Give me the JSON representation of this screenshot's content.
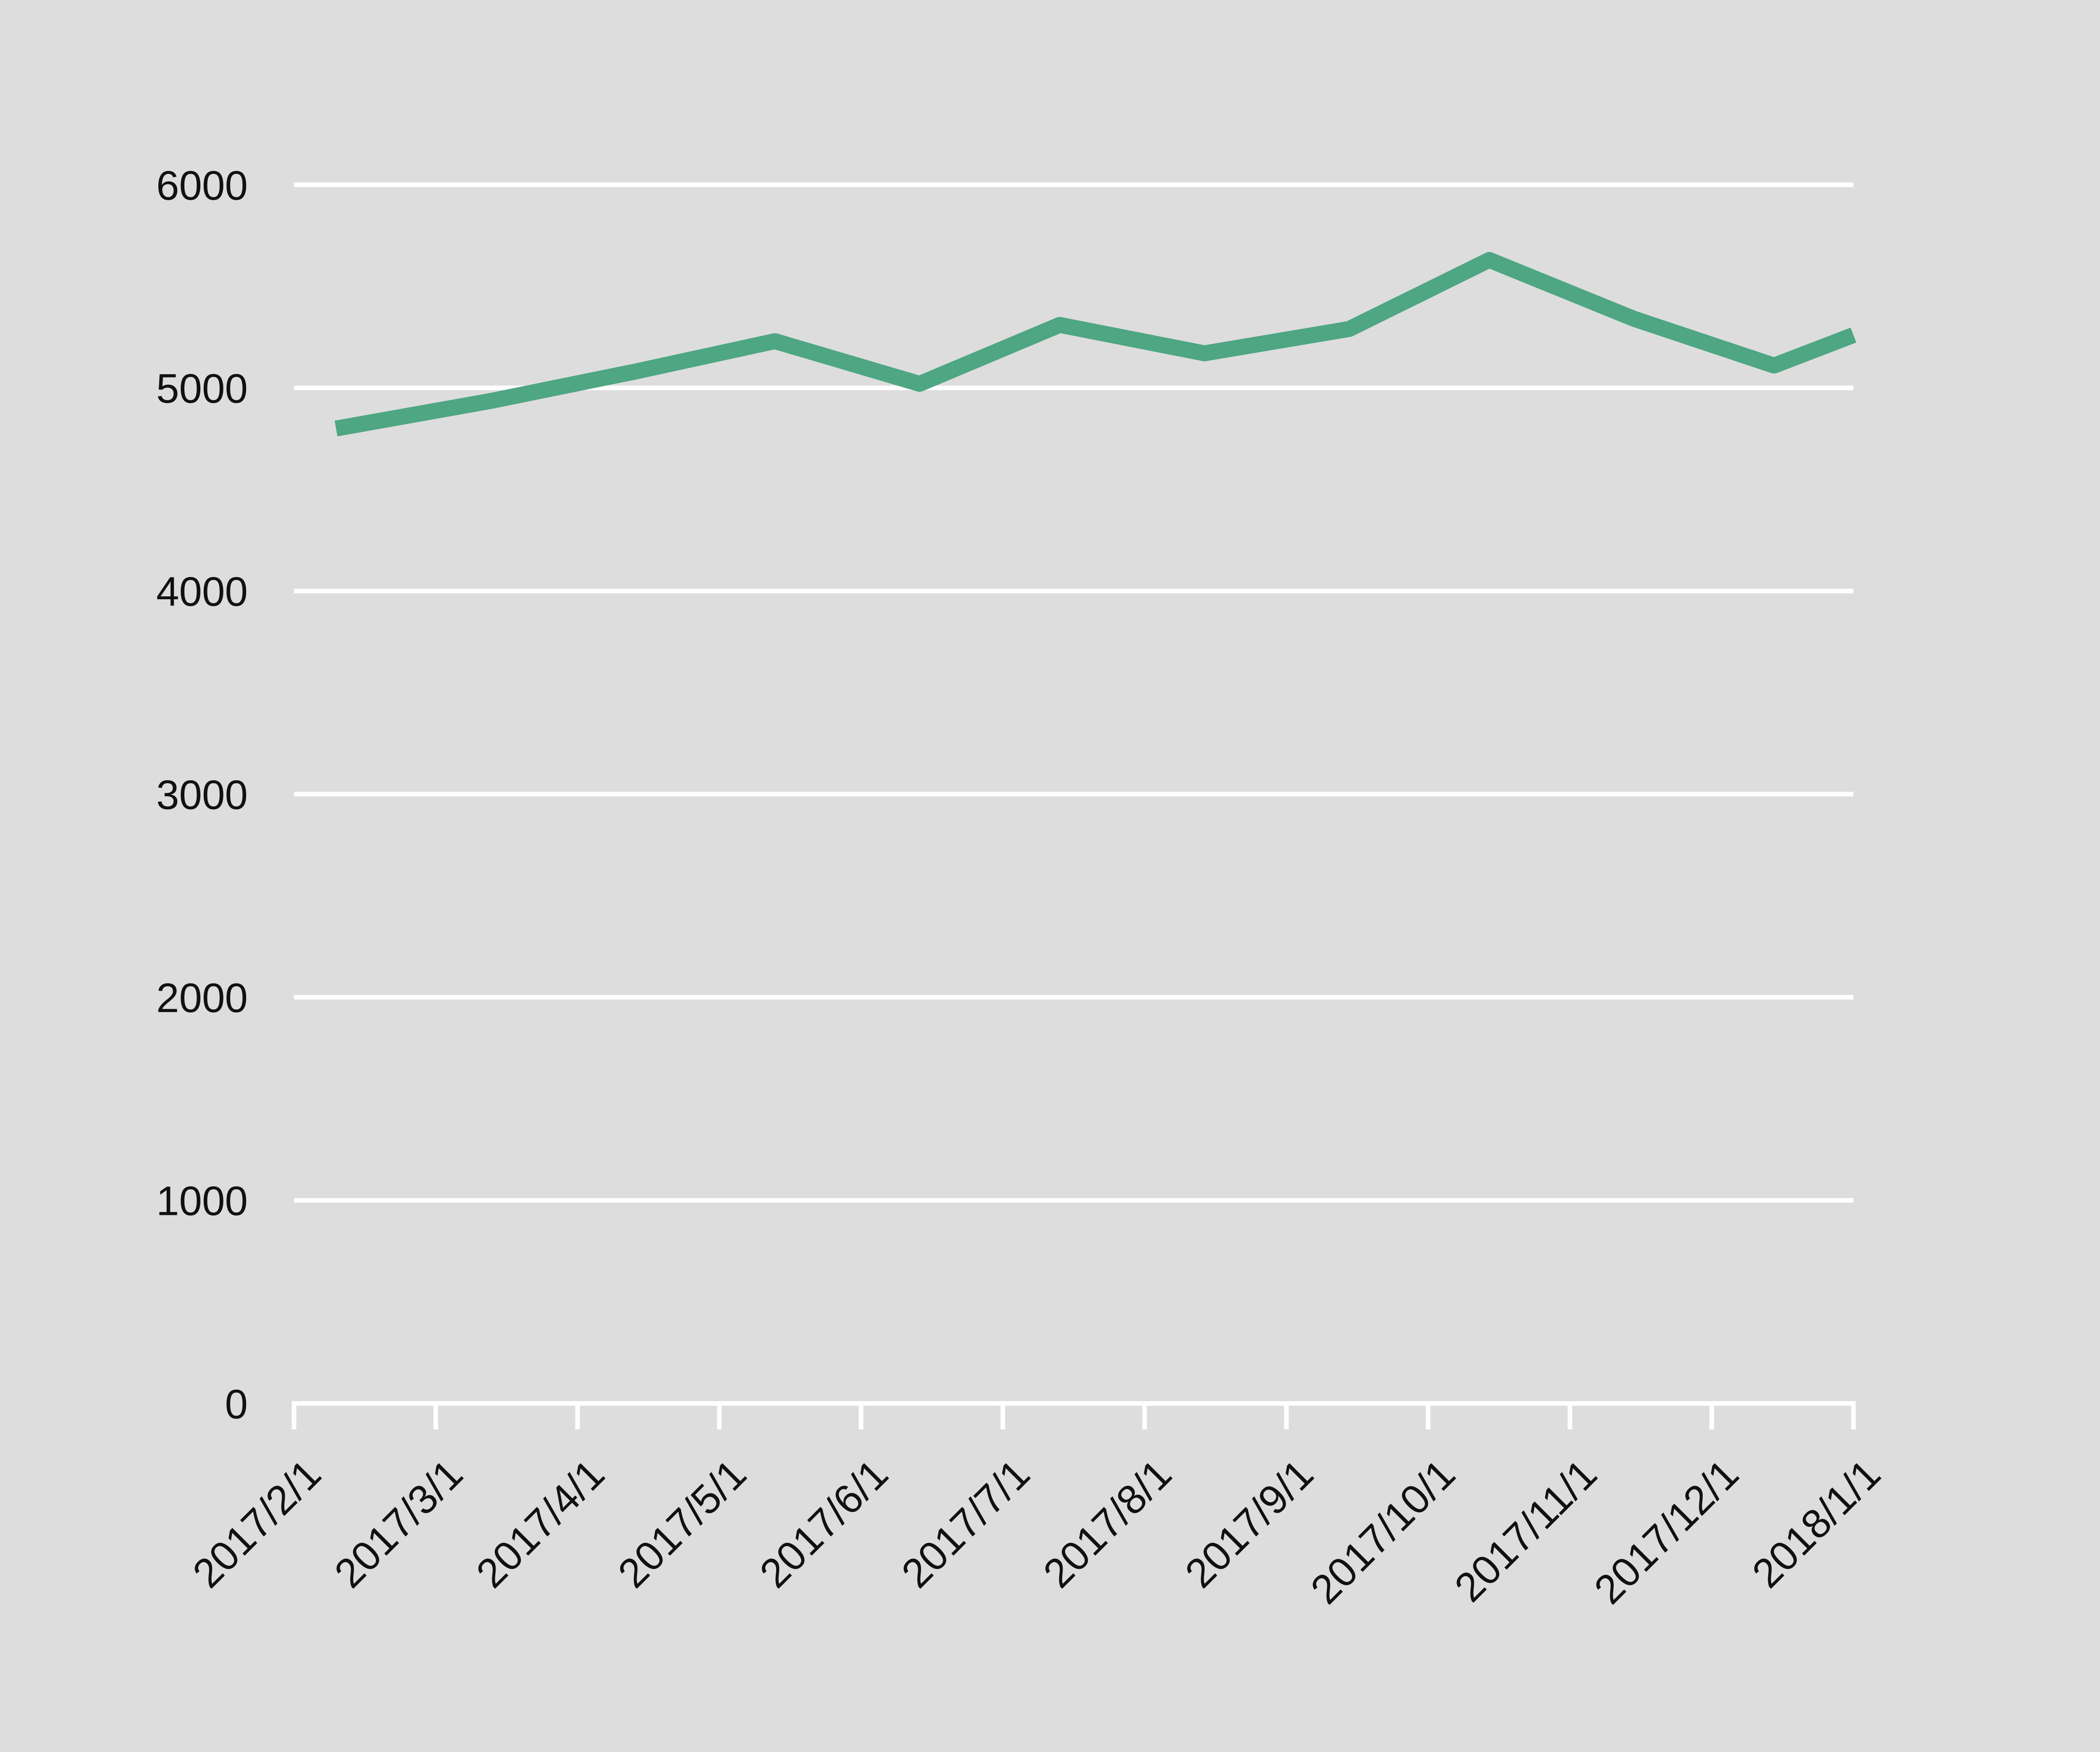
{
  "chart_data": {
    "type": "line",
    "title": "",
    "xlabel": "",
    "ylabel": "",
    "x_tick_labels": [
      "2017/2/1",
      "2017/3/1",
      "2017/4/1",
      "2017/5/1",
      "2017/6/1",
      "2017/7/1",
      "2017/8/1",
      "2017/9/1",
      "2017/10/1",
      "2017/11/1",
      "2017/12/1",
      "2018/1/1"
    ],
    "x_range": [
      "2017-02-01",
      "2018-01-01"
    ],
    "y_ticks": [
      0,
      1000,
      2000,
      3000,
      4000,
      5000,
      6000
    ],
    "y_tick_labels": [
      "0",
      "1000",
      "2000",
      "3000",
      "4000",
      "5000",
      "6000"
    ],
    "ylim": [
      0,
      6000
    ],
    "grid": "horizontal",
    "legend": "none",
    "series": [
      {
        "color": "#4ea683",
        "points": [
          {
            "x": "2017-02-10",
            "y": 4800
          },
          {
            "x": "2017-03-15",
            "y": 4935
          },
          {
            "x": "2017-04-15",
            "y": 5080
          },
          {
            "x": "2017-05-15",
            "y": 5230
          },
          {
            "x": "2017-06-15",
            "y": 5020
          },
          {
            "x": "2017-07-15",
            "y": 5310
          },
          {
            "x": "2017-08-15",
            "y": 5170
          },
          {
            "x": "2017-09-15",
            "y": 5290
          },
          {
            "x": "2017-10-15",
            "y": 5630
          },
          {
            "x": "2017-11-15",
            "y": 5340
          },
          {
            "x": "2017-12-15",
            "y": 5110
          },
          {
            "x": "2018-01-01",
            "y": 5260
          }
        ]
      }
    ]
  },
  "colors": {
    "background": "#dddddd",
    "grid": "#ffffff",
    "text": "#111111",
    "line": "#4ea683"
  }
}
